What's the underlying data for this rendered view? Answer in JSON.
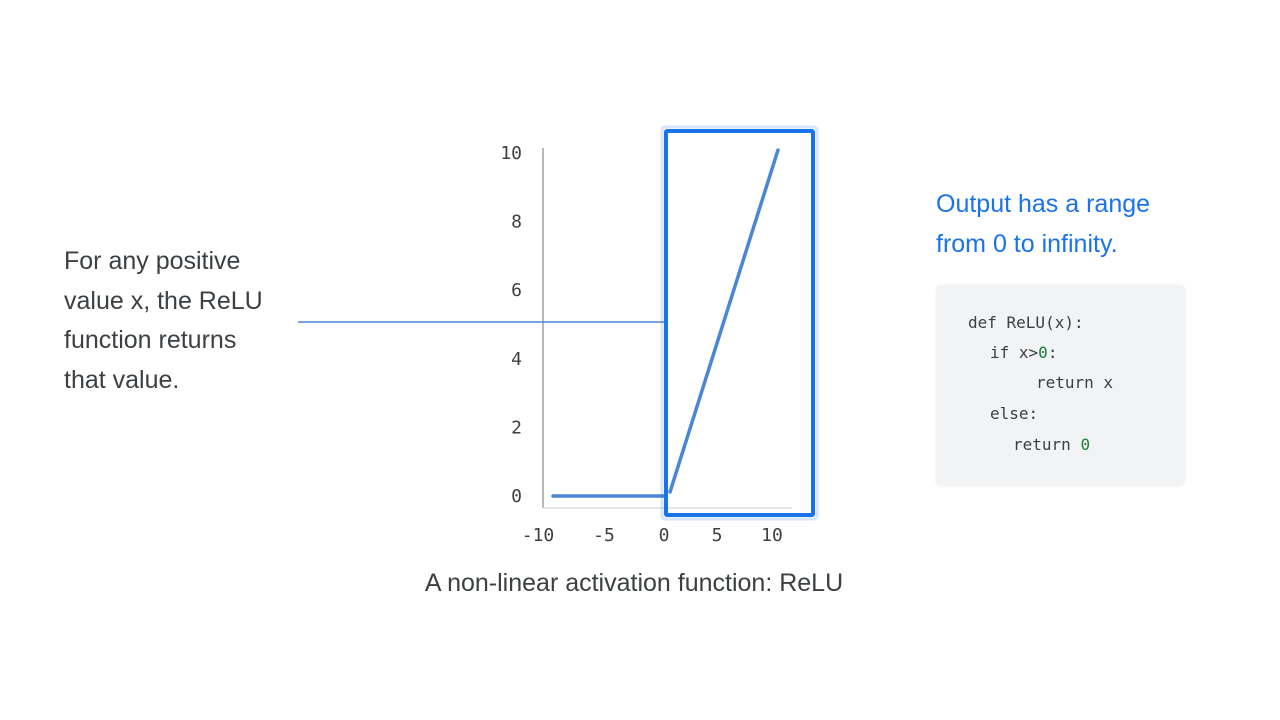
{
  "left_annotation": {
    "lines": [
      "For any positive",
      "value x, the ReLU",
      "function returns",
      "that value."
    ]
  },
  "right_annotation": {
    "lines": [
      "Output has a range",
      "from 0 to infinity."
    ]
  },
  "code": {
    "line1": "def ReLU(x):",
    "line2_kw": "if x>",
    "line2_num": "0",
    "line2_end": ":",
    "line3": "return x",
    "line4": "else:",
    "line5_kw": "return ",
    "line5_num": "0"
  },
  "caption": "A non-linear activation function: ReLU",
  "colors": {
    "accent": "#1a73e8",
    "line": "#4a86d8",
    "highlight_box": "#1a73e8",
    "text": "#3c4043",
    "axis": "#9aa0a6"
  },
  "chart_data": {
    "type": "line",
    "title": "",
    "xlabel": "",
    "ylabel": "",
    "xlim": [
      -10,
      12
    ],
    "ylim": [
      0,
      10
    ],
    "x_ticks": [
      -10,
      -5,
      0,
      5,
      10
    ],
    "x_tick_labels": [
      "-10",
      "-5",
      "0",
      "5",
      "10"
    ],
    "y_ticks": [
      0,
      2,
      4,
      6,
      8,
      10
    ],
    "y_tick_labels": [
      "0",
      "2",
      "4",
      "6",
      "8",
      "10"
    ],
    "series": [
      {
        "x": [
          -10,
          0,
          10
        ],
        "y": [
          0,
          0,
          10
        ]
      }
    ],
    "highlight_region": {
      "x_from": 0,
      "x_to": 14
    },
    "reference_line_y": 5,
    "grid": false
  }
}
